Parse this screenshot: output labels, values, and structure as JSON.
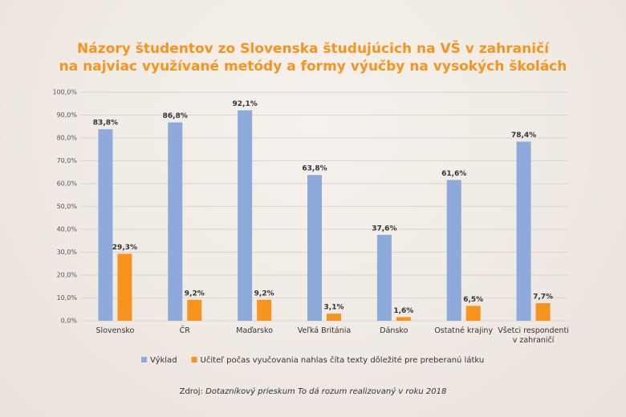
{
  "chart_data": {
    "type": "bar",
    "title_lines": [
      "Názory študentov zo Slovenska študujúcich na VŠ v zahraničí",
      "na najviac využívané metódy a formy výučby na vysokých školách"
    ],
    "categories": [
      "Slovensko",
      "ČR",
      "Maďarsko",
      "Veľká Británia",
      "Dánsko",
      "Ostatné krajiny",
      "Všetci respondenti v zahraničí"
    ],
    "series": [
      {
        "name": "Výklad",
        "color": "#8eaadb",
        "values": [
          83.8,
          86.8,
          92.1,
          63.8,
          37.6,
          61.6,
          78.4
        ],
        "value_labels": [
          "83,8%",
          "86,8%",
          "92,1%",
          "63,8%",
          "37,6%",
          "61,6%",
          "78,4%"
        ]
      },
      {
        "name": "Učiteľ počas vyučovania nahlas číta texty dôležité pre preberanú látku",
        "color": "#f7941d",
        "values": [
          29.3,
          9.2,
          9.2,
          3.1,
          1.6,
          6.5,
          7.7
        ],
        "value_labels": [
          "29,3%",
          "9,2%",
          "9,2%",
          "3,1%",
          "1,6%",
          "6,5%",
          "7,7%"
        ]
      }
    ],
    "ylim": [
      0,
      100
    ],
    "yticks": [
      {
        "value": 0,
        "label": "0,0%"
      },
      {
        "value": 10,
        "label": "10,0%"
      },
      {
        "value": 20,
        "label": "20,0%"
      },
      {
        "value": 30,
        "label": "30,0%"
      },
      {
        "value": 40,
        "label": "40,0%"
      },
      {
        "value": 50,
        "label": "50,0%"
      },
      {
        "value": 60,
        "label": "60,0%"
      },
      {
        "value": 70,
        "label": "70,0%"
      },
      {
        "value": 80,
        "label": "80,0%"
      },
      {
        "value": 90,
        "label": "90,0%"
      },
      {
        "value": 100,
        "label": "100,0%"
      }
    ],
    "grid": true,
    "source_prefix": "Zdroj:",
    "source_detail": "Dotazníkový prieskum To dá rozum realizovaný v roku 2018"
  }
}
